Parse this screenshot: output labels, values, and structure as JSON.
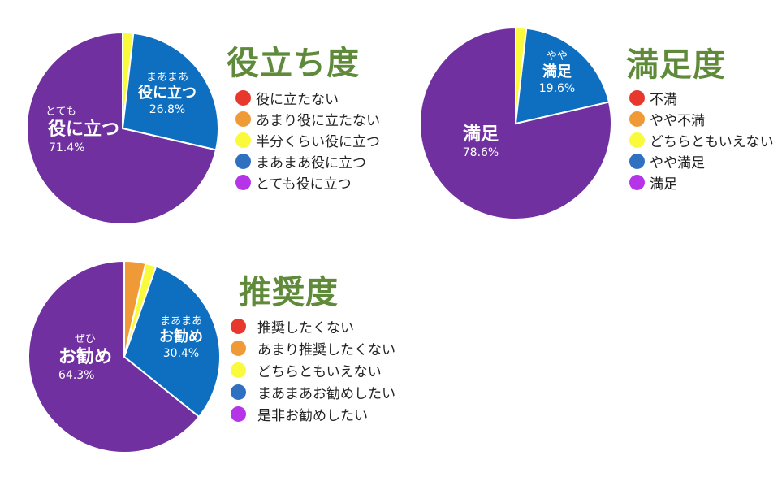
{
  "chart_data": [
    {
      "type": "pie",
      "title": "役立ち度",
      "colors": [
        "#e8372c",
        "#ef9a37",
        "#fafa3c",
        "#0e6fc1",
        "#7030a0"
      ],
      "legend_colors": [
        "#e8372c",
        "#ef9a37",
        "#fafa3c",
        "#2f70c0",
        "#b634e8"
      ],
      "categories": [
        "役に立たない",
        "あまり役に立たない",
        "半分くらい役に立つ",
        "まあまあ役に立つ",
        "とても役に立つ"
      ],
      "values": [
        0,
        0,
        1.8,
        26.8,
        71.4
      ],
      "slice_labels": [
        null,
        null,
        null,
        {
          "small": "まあまあ",
          "big": "役に立つ",
          "pct": "26.8%"
        },
        {
          "small": "とても",
          "big": "役に立つ",
          "pct": "71.4%"
        }
      ],
      "legend": "right"
    },
    {
      "type": "pie",
      "title": "満足度",
      "colors": [
        "#e8372c",
        "#ef9a37",
        "#fafa3c",
        "#0e6fc1",
        "#7030a0"
      ],
      "legend_colors": [
        "#e8372c",
        "#ef9a37",
        "#fafa3c",
        "#2f70c0",
        "#b634e8"
      ],
      "categories": [
        "不満",
        "やや不満",
        "どちらともいえない",
        "やや満足",
        "満足"
      ],
      "values": [
        0,
        0,
        1.8,
        19.6,
        78.6
      ],
      "slice_labels": [
        null,
        null,
        null,
        {
          "small": "やや",
          "big": "満足",
          "pct": "19.6%"
        },
        {
          "small": "",
          "big": "満足",
          "pct": "78.6%"
        }
      ],
      "legend": "right"
    },
    {
      "type": "pie",
      "title": "推奨度",
      "colors": [
        "#e8372c",
        "#ef9a37",
        "#fafa3c",
        "#0e6fc1",
        "#7030a0"
      ],
      "legend_colors": [
        "#e8372c",
        "#ef9a37",
        "#fafa3c",
        "#2f70c0",
        "#b634e8"
      ],
      "categories": [
        "推奨したくない",
        "あまり推奨したくない",
        "どちらともいえない",
        "まあまあお勧めしたい",
        "是非お勧めしたい"
      ],
      "values": [
        0,
        3.6,
        1.8,
        30.4,
        64.3
      ],
      "slice_labels": [
        null,
        null,
        null,
        {
          "small": "まあまあ",
          "big": "お勧め",
          "pct": "30.4%"
        },
        {
          "small": "ぜひ",
          "big": "お勧め",
          "pct": "64.3%"
        }
      ],
      "legend": "right"
    }
  ]
}
